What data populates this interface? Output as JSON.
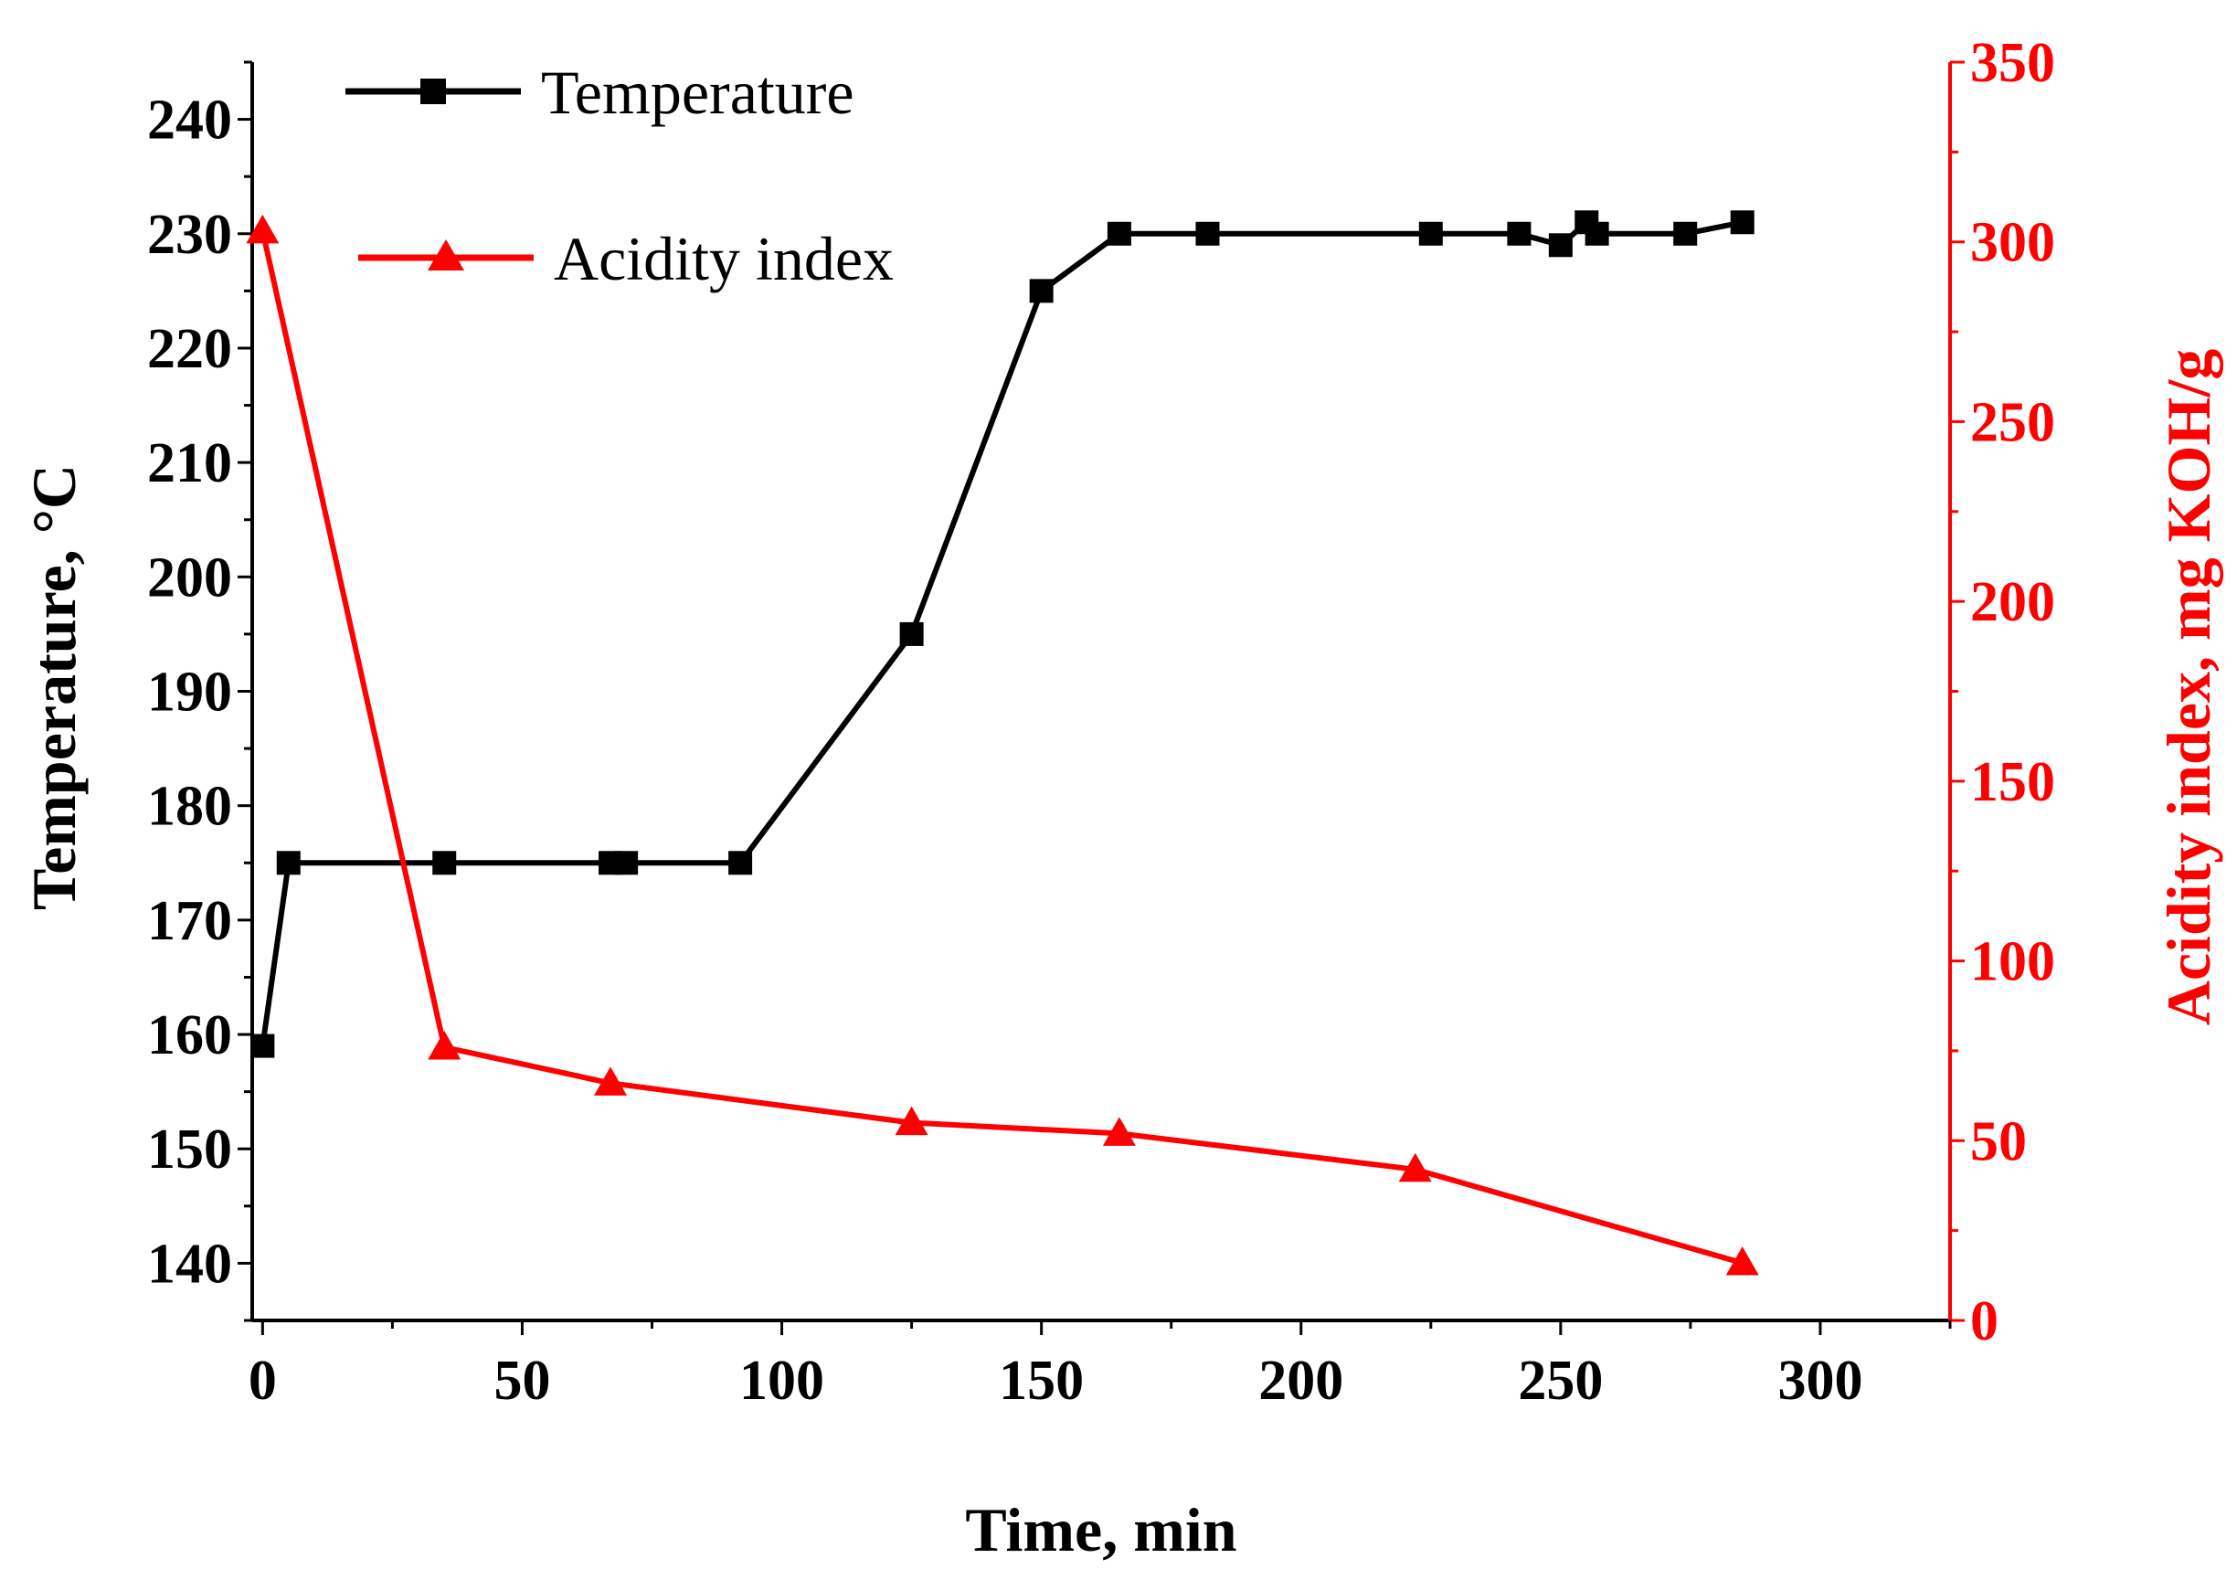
{
  "chart_data": {
    "type": "line",
    "title": "",
    "xlabel": "Time, min",
    "xlim": [
      -2,
      325
    ],
    "x_ticks": [
      "0",
      "50",
      "100",
      "150",
      "200",
      "250",
      "300"
    ],
    "x_tick_values": [
      0,
      50,
      100,
      150,
      200,
      250,
      300
    ],
    "y_left": {
      "label": "Temperature, °C",
      "ylim": [
        135,
        245
      ],
      "ticks": [
        "140",
        "150",
        "160",
        "170",
        "180",
        "190",
        "200",
        "210",
        "220",
        "230",
        "240"
      ],
      "tick_values": [
        140,
        150,
        160,
        170,
        180,
        190,
        200,
        210,
        220,
        230,
        240
      ],
      "color": "#000000"
    },
    "y_right": {
      "label": "Acidity index, mg KOH/g",
      "ylim": [
        0,
        350
      ],
      "ticks": [
        "0",
        "50",
        "100",
        "150",
        "200",
        "250",
        "300",
        "350"
      ],
      "tick_values": [
        0,
        50,
        100,
        150,
        200,
        250,
        300,
        350
      ],
      "color": "#ff0000"
    },
    "series": [
      {
        "name": "Temperature",
        "axis": "left",
        "marker": "square",
        "color": "#000000",
        "x": [
          0,
          5,
          35,
          67,
          70,
          92,
          125,
          150,
          165,
          182,
          225,
          242,
          250,
          255,
          257,
          274,
          285
        ],
        "y": [
          159,
          175,
          175,
          175,
          175,
          175,
          195,
          225,
          230,
          230,
          230,
          230,
          229,
          231,
          230,
          230,
          231
        ]
      },
      {
        "name": "Acidity index",
        "axis": "right",
        "marker": "triangle",
        "color": "#ff0000",
        "x": [
          0,
          35,
          67,
          125,
          165,
          222,
          285
        ],
        "y": [
          303,
          76,
          66,
          55,
          52,
          42,
          16
        ]
      }
    ],
    "legend_position": "top-left",
    "grid": false
  }
}
